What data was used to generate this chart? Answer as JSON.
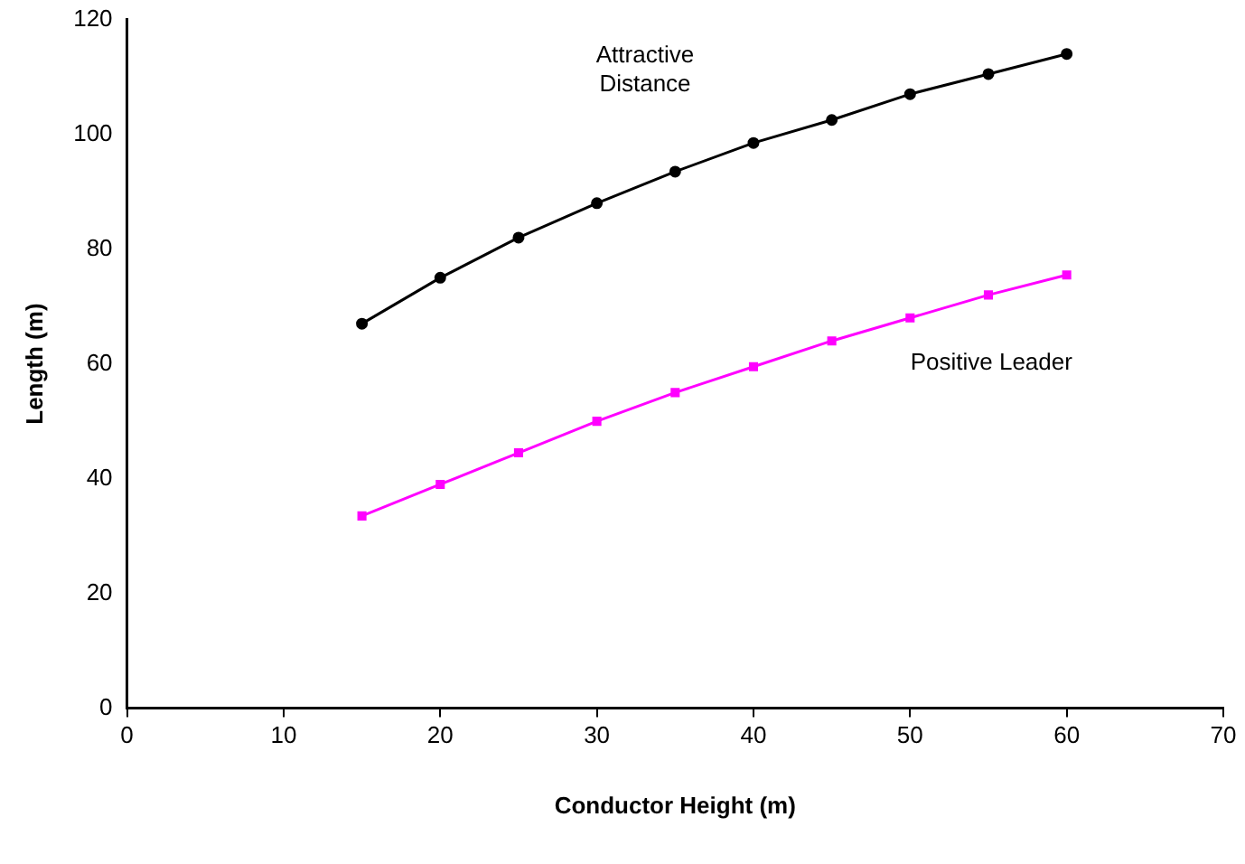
{
  "chart_data": {
    "type": "line",
    "xlabel": "Conductor Height (m)",
    "ylabel": "Length (m)",
    "x": [
      15,
      20,
      25,
      30,
      35,
      40,
      45,
      50,
      55,
      60
    ],
    "series": [
      {
        "name": "Attractive Distance",
        "color": "#000000",
        "marker": "circle",
        "values": [
          67,
          75,
          82,
          88,
          93.5,
          98.5,
          102.5,
          107,
          110.5,
          114
        ]
      },
      {
        "name": "Positive Leader",
        "color": "#ff00ff",
        "marker": "square",
        "values": [
          33.5,
          39,
          44.5,
          50,
          55,
          59.5,
          64,
          68,
          72,
          75.5
        ]
      }
    ],
    "xlim": [
      0,
      70
    ],
    "xticks": [
      0,
      10,
      20,
      30,
      40,
      50,
      60,
      70
    ],
    "ylim": [
      0,
      120
    ],
    "yticks": [
      0,
      20,
      40,
      60,
      80,
      100,
      120
    ],
    "grid": false,
    "legend": false,
    "line_style": "solid"
  }
}
